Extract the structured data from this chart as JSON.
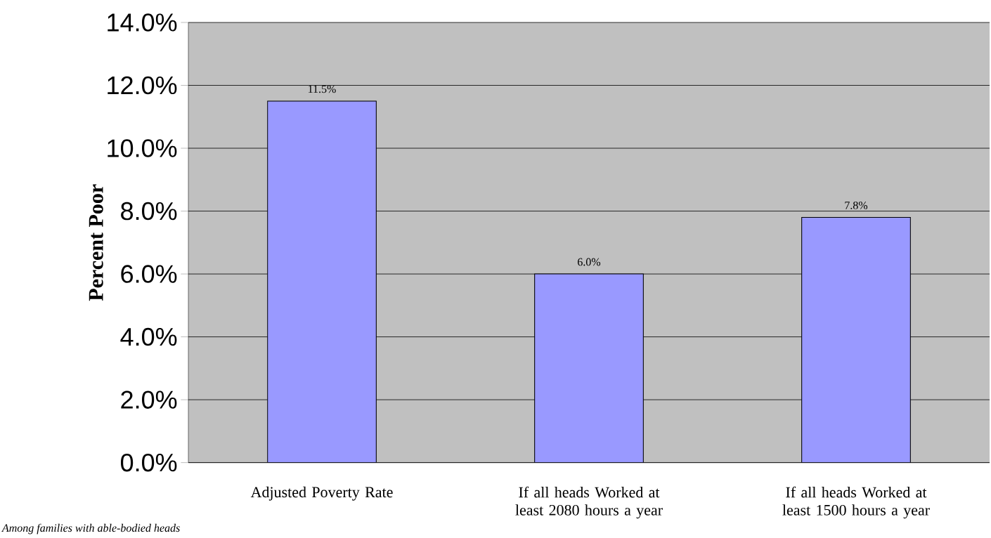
{
  "chart_data": {
    "type": "bar",
    "ylabel": "Percent Poor",
    "categories": [
      "Adjusted Poverty Rate",
      "If all heads Worked at least 2080 hours a year",
      "If all heads Worked at least 1500 hours a year"
    ],
    "values": [
      11.5,
      6.0,
      7.8
    ],
    "value_labels": [
      "11.5%",
      "6.0%",
      "7.8%"
    ],
    "color": "#9999ff",
    "ylim": [
      0,
      14
    ],
    "yticks": [
      {
        "value": 0,
        "label": "0.0%"
      },
      {
        "value": 2,
        "label": "2.0%"
      },
      {
        "value": 4,
        "label": "4.0%"
      },
      {
        "value": 6,
        "label": "6.0%"
      },
      {
        "value": 8,
        "label": "8.0%"
      },
      {
        "value": 10,
        "label": "10.0%"
      },
      {
        "value": 12,
        "label": "12.0%"
      },
      {
        "value": 14,
        "label": "14.0%"
      }
    ],
    "grid": "y",
    "annotations": [
      "Among families with able-bodied heads"
    ]
  }
}
